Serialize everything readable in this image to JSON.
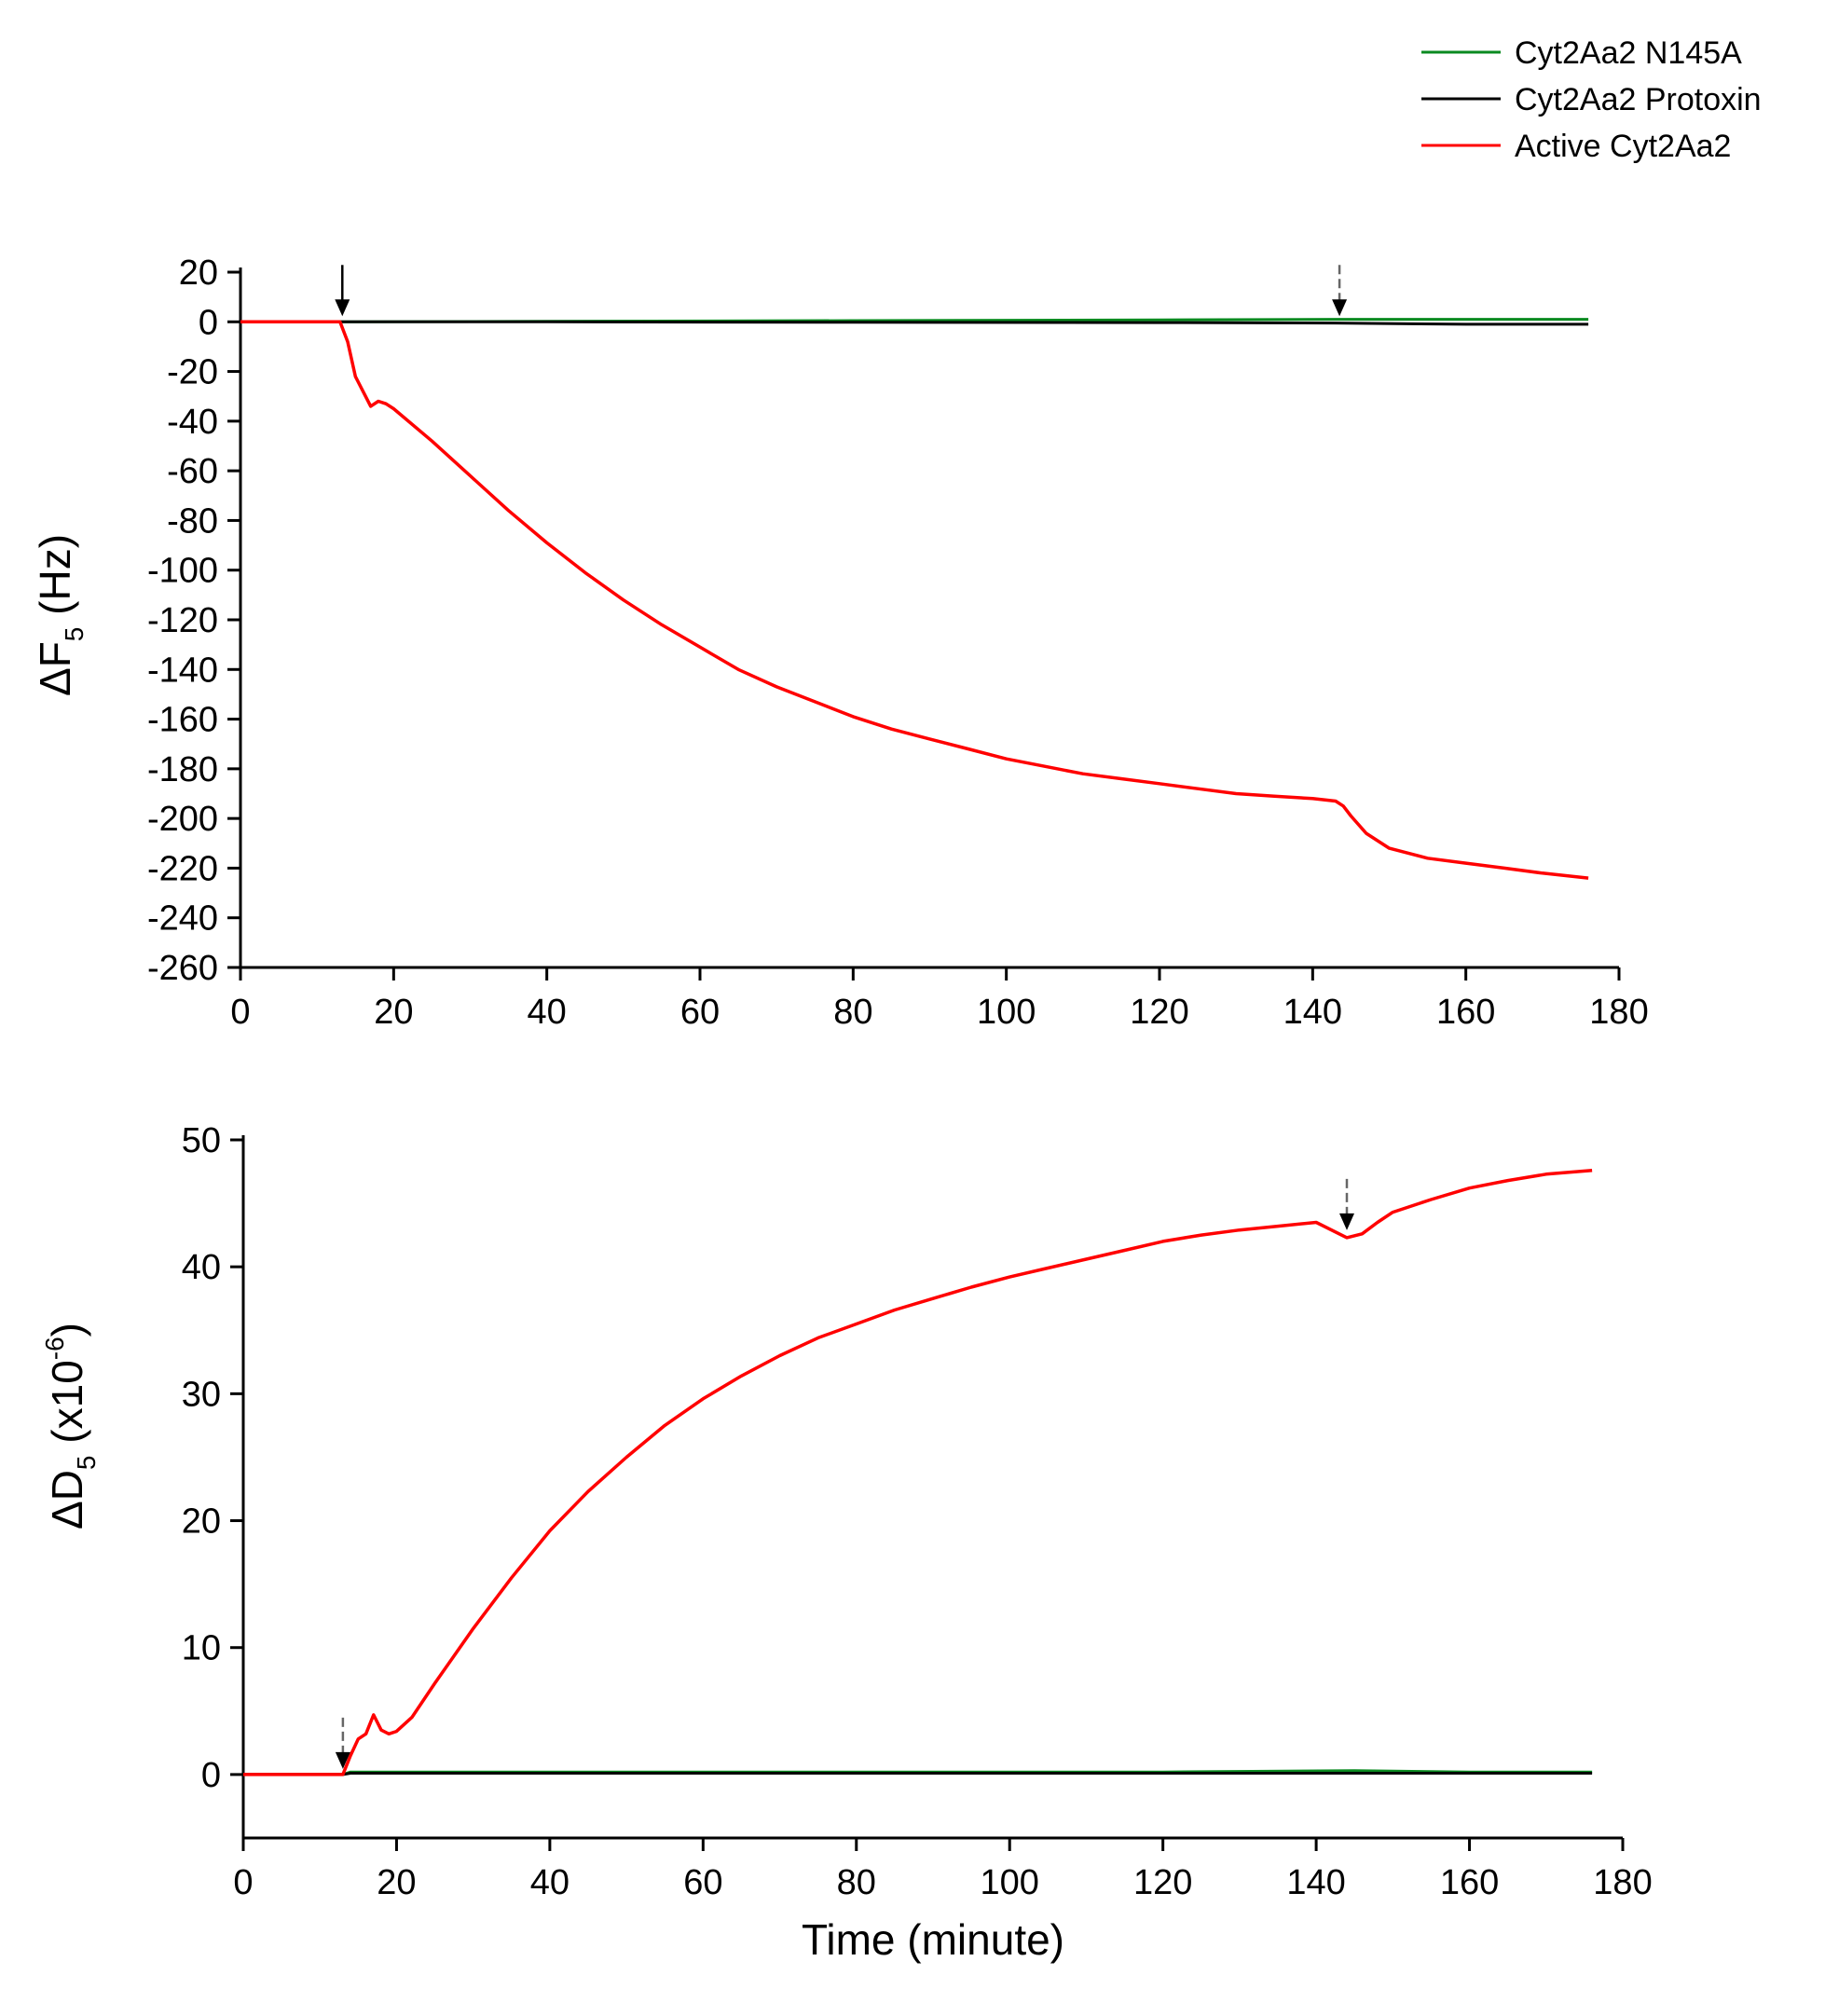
{
  "legend": [
    {
      "label": "Cyt2Aa2 N145A",
      "color": "#0a8a20"
    },
    {
      "label": "Cyt2Aa2 Protoxin",
      "color": "#000000"
    },
    {
      "label": "Active Cyt2Aa2",
      "color": "#ff0000"
    }
  ],
  "chart_data": [
    {
      "type": "line",
      "panel": "top",
      "xlabel": "",
      "ylabel": {
        "main": "ΔF",
        "sub": "5",
        "unit": " (Hz)"
      },
      "xlim": [
        0,
        180
      ],
      "ylim": [
        -260,
        20
      ],
      "xticks": [
        0,
        20,
        40,
        60,
        80,
        100,
        120,
        140,
        160,
        180
      ],
      "yticks": [
        20,
        0,
        -20,
        -40,
        -60,
        -80,
        -100,
        -120,
        -140,
        -160,
        -180,
        -200,
        -220,
        -240,
        -260
      ],
      "arrows": [
        {
          "x": 13.3,
          "style": "solid"
        },
        {
          "x": 143.5,
          "style": "dashed"
        }
      ],
      "series": [
        {
          "name": "Cyt2Aa2 N145A",
          "color": "#0a8a20",
          "x": [
            0,
            13,
            40,
            80,
            120,
            143,
            160,
            176
          ],
          "y": [
            0,
            0,
            0.2,
            0.5,
            0.8,
            1.0,
            1.0,
            1.0
          ]
        },
        {
          "name": "Cyt2Aa2 Protoxin",
          "color": "#000000",
          "x": [
            0,
            13,
            40,
            80,
            120,
            143,
            160,
            176
          ],
          "y": [
            0,
            0,
            0,
            -0.2,
            -0.3,
            -0.5,
            -1.0,
            -1.0
          ]
        },
        {
          "name": "Active Cyt2Aa2",
          "color": "#ff0000",
          "x": [
            0,
            13,
            14,
            15,
            16,
            17,
            18,
            19,
            20,
            25,
            30,
            35,
            40,
            45,
            50,
            55,
            60,
            65,
            70,
            75,
            80,
            85,
            90,
            95,
            100,
            105,
            110,
            115,
            120,
            125,
            130,
            135,
            140,
            143,
            144,
            145,
            147,
            150,
            155,
            160,
            165,
            170,
            176
          ],
          "y": [
            0,
            0,
            -8,
            -22,
            -28,
            -34,
            -32,
            -33,
            -35,
            -48,
            -62,
            -76,
            -89,
            -101,
            -112,
            -122,
            -131,
            -140,
            -147,
            -153,
            -159,
            -164,
            -168,
            -172,
            -176,
            -179,
            -182,
            -184,
            -186,
            -188,
            -190,
            -191,
            -192,
            -193,
            -195,
            -199,
            -206,
            -212,
            -216,
            -218,
            -220,
            -222,
            -224
          ]
        }
      ]
    },
    {
      "type": "line",
      "panel": "bottom",
      "xlabel": "Time (minute)",
      "ylabel": {
        "main": "ΔD",
        "sub": "5",
        "unit": " (x10",
        "sup": "-6",
        "close": ")"
      },
      "xlim": [
        0,
        180
      ],
      "ylim": [
        -5,
        50
      ],
      "xticks": [
        0,
        20,
        40,
        60,
        80,
        100,
        120,
        140,
        160,
        180
      ],
      "yticks": [
        50,
        40,
        30,
        20,
        10,
        0
      ],
      "arrows": [
        {
          "x": 13,
          "style": "dashed"
        },
        {
          "x": 144,
          "style": "dashed"
        }
      ],
      "series": [
        {
          "name": "Cyt2Aa2 N145A",
          "color": "#0a8a20",
          "x": [
            0,
            13,
            14,
            40,
            80,
            120,
            145,
            160,
            176
          ],
          "y": [
            0,
            0,
            0.2,
            0.2,
            0.2,
            0.2,
            0.3,
            0.2,
            0.2
          ]
        },
        {
          "name": "Cyt2Aa2 Protoxin",
          "color": "#000000",
          "x": [
            0,
            13,
            14,
            40,
            80,
            120,
            145,
            160,
            176
          ],
          "y": [
            0,
            0,
            0.1,
            0.1,
            0.1,
            0.1,
            0.1,
            0.1,
            0.1
          ]
        },
        {
          "name": "Active Cyt2Aa2",
          "color": "#ff0000",
          "x": [
            0,
            13,
            14,
            15,
            16,
            17,
            18,
            19,
            20,
            22,
            25,
            30,
            35,
            40,
            45,
            50,
            55,
            60,
            65,
            70,
            75,
            80,
            85,
            90,
            95,
            100,
            105,
            110,
            115,
            120,
            125,
            130,
            135,
            140,
            144,
            146,
            148,
            150,
            155,
            160,
            165,
            170,
            176
          ],
          "y": [
            0,
            0,
            1.5,
            2.8,
            3.2,
            4.7,
            3.5,
            3.2,
            3.4,
            4.5,
            7.2,
            11.5,
            15.5,
            19.2,
            22.3,
            25.0,
            27.5,
            29.6,
            31.4,
            33.0,
            34.4,
            35.5,
            36.6,
            37.5,
            38.4,
            39.2,
            39.9,
            40.6,
            41.3,
            42.0,
            42.5,
            42.9,
            43.2,
            43.5,
            42.3,
            42.6,
            43.5,
            44.3,
            45.3,
            46.2,
            46.8,
            47.3,
            47.6
          ]
        }
      ]
    }
  ]
}
